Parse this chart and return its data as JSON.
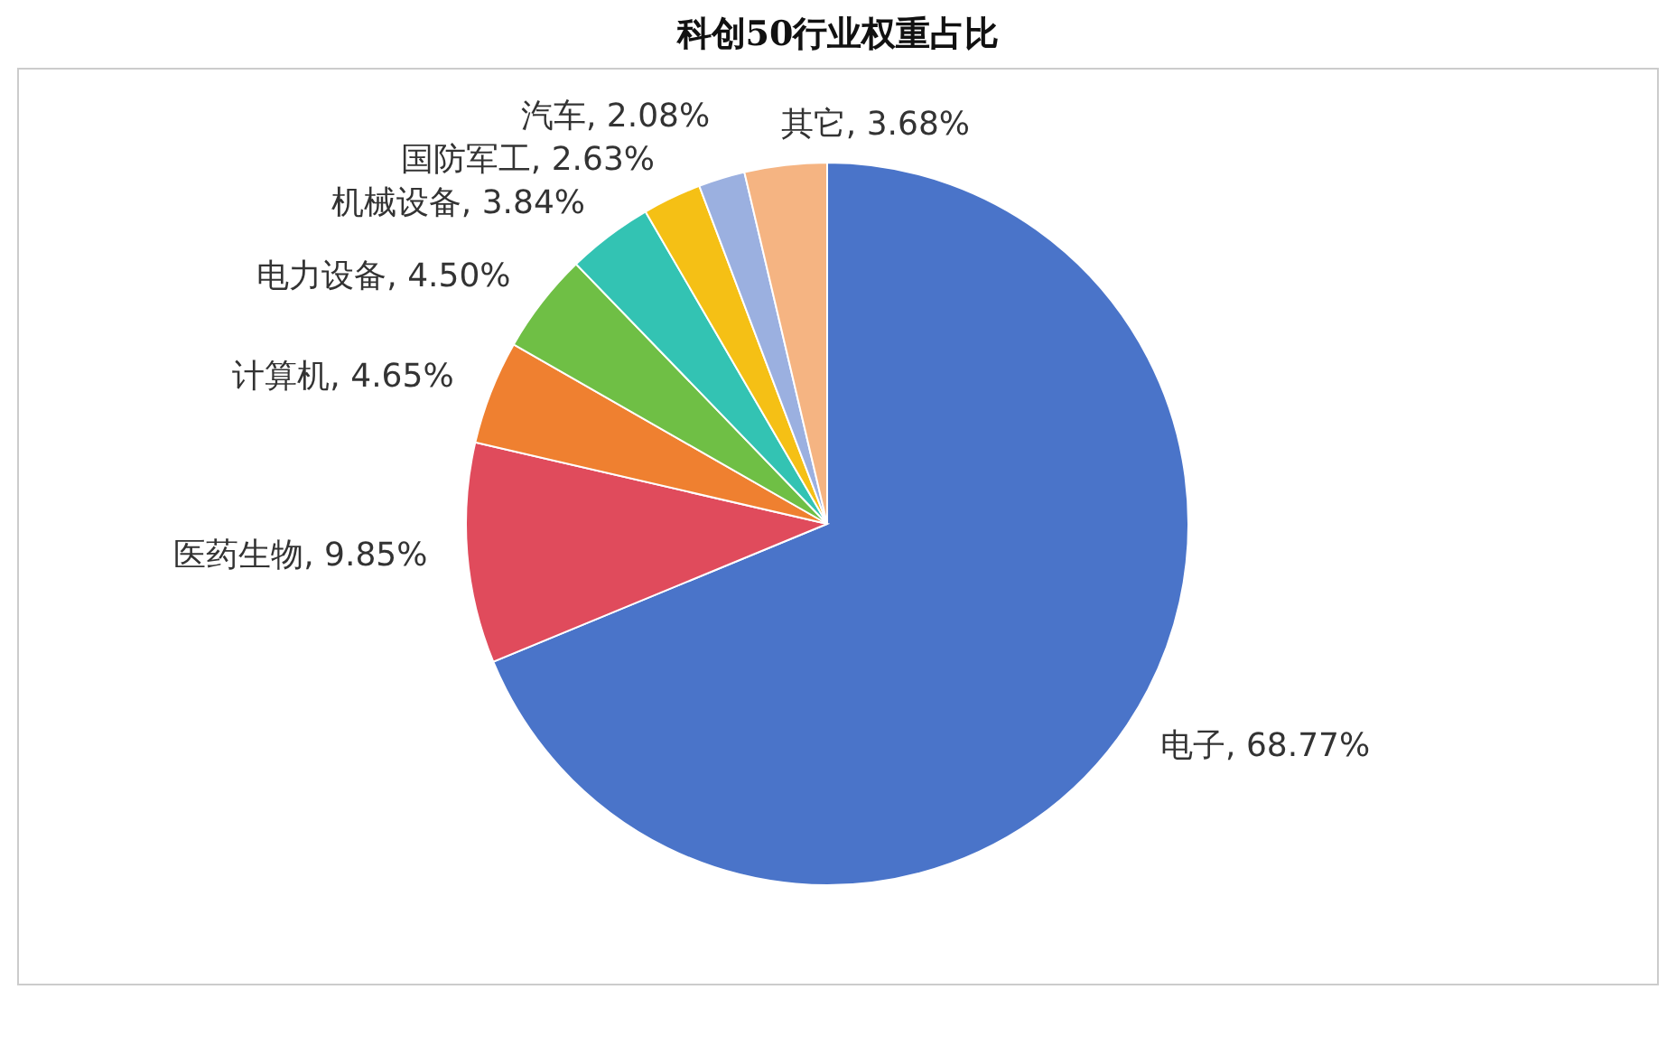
{
  "chart_data": {
    "type": "pie",
    "title": "科创50行业权重占比",
    "categories": [
      "电子",
      "医药生物",
      "计算机",
      "电力设备",
      "机械设备",
      "国防军工",
      "汽车",
      "其它"
    ],
    "values": [
      68.77,
      9.85,
      4.65,
      4.5,
      3.84,
      2.63,
      2.08,
      3.68
    ],
    "value_labels": [
      ", 68.77%",
      ", 9.85%",
      ", 4.65%",
      ", 4.50%",
      ", 3.84%",
      ", 2.63%",
      ", 2.08%",
      ", 3.68%"
    ],
    "colors": [
      "#4a74c9",
      "#e04b5c",
      "#ef8030",
      "#6fbf45",
      "#33c3b3",
      "#f5c015",
      "#9bb0e0",
      "#f5b482"
    ]
  }
}
